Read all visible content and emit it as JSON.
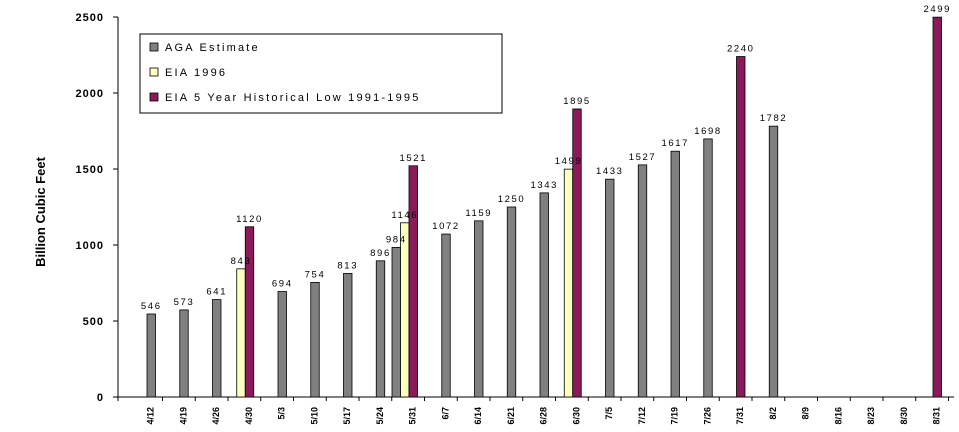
{
  "chart_data": {
    "type": "bar",
    "title": "",
    "xlabel": "",
    "ylabel": "Billion Cubic Feet",
    "ylim": [
      0,
      2500
    ],
    "yticks": [
      0,
      500,
      1000,
      1500,
      2000,
      2500
    ],
    "grid": false,
    "legend_position": "top-left",
    "categories": [
      "4/12",
      "4/19",
      "4/26",
      "4/30",
      "5/3",
      "5/10",
      "5/17",
      "5/24",
      "5/31",
      "6/7",
      "6/14",
      "6/21",
      "6/28",
      "6/30",
      "7/5",
      "7/12",
      "7/19",
      "7/26",
      "7/31",
      "8/2",
      "8/9",
      "8/16",
      "8/23",
      "8/30",
      "8/31"
    ],
    "series": [
      {
        "name": "AGA Estimate",
        "color": "#808080",
        "values": [
          546,
          573,
          641,
          null,
          694,
          754,
          813,
          896,
          984,
          1072,
          1159,
          1250,
          1343,
          null,
          1433,
          1527,
          1617,
          1698,
          null,
          1782,
          null,
          null,
          null,
          null,
          null
        ]
      },
      {
        "name": "EIA 1996",
        "color": "#ffffc0",
        "values": [
          null,
          null,
          null,
          843,
          null,
          null,
          null,
          null,
          1146,
          null,
          null,
          null,
          null,
          1499,
          null,
          null,
          null,
          null,
          null,
          null,
          null,
          null,
          null,
          null,
          null
        ]
      },
      {
        "name": "EIA 5 Year Historical Low 1991-1995",
        "color": "#8b1a5a",
        "values": [
          null,
          null,
          null,
          1120,
          null,
          null,
          null,
          null,
          1521,
          null,
          null,
          null,
          null,
          1895,
          null,
          null,
          null,
          null,
          2240,
          null,
          null,
          null,
          null,
          null,
          2499
        ]
      }
    ]
  }
}
